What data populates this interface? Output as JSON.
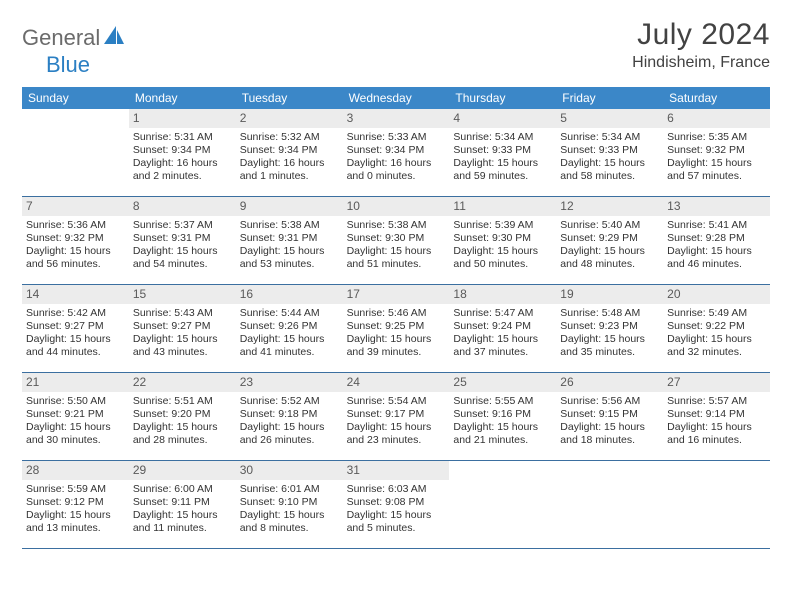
{
  "logo": {
    "text1": "General",
    "text2": "Blue"
  },
  "title": {
    "month": "July 2024",
    "location": "Hindisheim, France"
  },
  "colors": {
    "header_bg": "#3b87c8",
    "header_text": "#ffffff",
    "daynum_bg": "#ececec",
    "border": "#3b6fa0",
    "logo_blue": "#2b7fc3",
    "logo_grey": "#6b6b6b",
    "text": "#333333"
  },
  "weekdays": [
    "Sunday",
    "Monday",
    "Tuesday",
    "Wednesday",
    "Thursday",
    "Friday",
    "Saturday"
  ],
  "layout": {
    "cols": 7,
    "rows": 5,
    "first_weekday_index": 1,
    "days_in_month": 31
  },
  "days": [
    {
      "n": 1,
      "sr": "5:31 AM",
      "ss": "9:34 PM",
      "dl": "16 hours and 2 minutes."
    },
    {
      "n": 2,
      "sr": "5:32 AM",
      "ss": "9:34 PM",
      "dl": "16 hours and 1 minutes."
    },
    {
      "n": 3,
      "sr": "5:33 AM",
      "ss": "9:34 PM",
      "dl": "16 hours and 0 minutes."
    },
    {
      "n": 4,
      "sr": "5:34 AM",
      "ss": "9:33 PM",
      "dl": "15 hours and 59 minutes."
    },
    {
      "n": 5,
      "sr": "5:34 AM",
      "ss": "9:33 PM",
      "dl": "15 hours and 58 minutes."
    },
    {
      "n": 6,
      "sr": "5:35 AM",
      "ss": "9:32 PM",
      "dl": "15 hours and 57 minutes."
    },
    {
      "n": 7,
      "sr": "5:36 AM",
      "ss": "9:32 PM",
      "dl": "15 hours and 56 minutes."
    },
    {
      "n": 8,
      "sr": "5:37 AM",
      "ss": "9:31 PM",
      "dl": "15 hours and 54 minutes."
    },
    {
      "n": 9,
      "sr": "5:38 AM",
      "ss": "9:31 PM",
      "dl": "15 hours and 53 minutes."
    },
    {
      "n": 10,
      "sr": "5:38 AM",
      "ss": "9:30 PM",
      "dl": "15 hours and 51 minutes."
    },
    {
      "n": 11,
      "sr": "5:39 AM",
      "ss": "9:30 PM",
      "dl": "15 hours and 50 minutes."
    },
    {
      "n": 12,
      "sr": "5:40 AM",
      "ss": "9:29 PM",
      "dl": "15 hours and 48 minutes."
    },
    {
      "n": 13,
      "sr": "5:41 AM",
      "ss": "9:28 PM",
      "dl": "15 hours and 46 minutes."
    },
    {
      "n": 14,
      "sr": "5:42 AM",
      "ss": "9:27 PM",
      "dl": "15 hours and 44 minutes."
    },
    {
      "n": 15,
      "sr": "5:43 AM",
      "ss": "9:27 PM",
      "dl": "15 hours and 43 minutes."
    },
    {
      "n": 16,
      "sr": "5:44 AM",
      "ss": "9:26 PM",
      "dl": "15 hours and 41 minutes."
    },
    {
      "n": 17,
      "sr": "5:46 AM",
      "ss": "9:25 PM",
      "dl": "15 hours and 39 minutes."
    },
    {
      "n": 18,
      "sr": "5:47 AM",
      "ss": "9:24 PM",
      "dl": "15 hours and 37 minutes."
    },
    {
      "n": 19,
      "sr": "5:48 AM",
      "ss": "9:23 PM",
      "dl": "15 hours and 35 minutes."
    },
    {
      "n": 20,
      "sr": "5:49 AM",
      "ss": "9:22 PM",
      "dl": "15 hours and 32 minutes."
    },
    {
      "n": 21,
      "sr": "5:50 AM",
      "ss": "9:21 PM",
      "dl": "15 hours and 30 minutes."
    },
    {
      "n": 22,
      "sr": "5:51 AM",
      "ss": "9:20 PM",
      "dl": "15 hours and 28 minutes."
    },
    {
      "n": 23,
      "sr": "5:52 AM",
      "ss": "9:18 PM",
      "dl": "15 hours and 26 minutes."
    },
    {
      "n": 24,
      "sr": "5:54 AM",
      "ss": "9:17 PM",
      "dl": "15 hours and 23 minutes."
    },
    {
      "n": 25,
      "sr": "5:55 AM",
      "ss": "9:16 PM",
      "dl": "15 hours and 21 minutes."
    },
    {
      "n": 26,
      "sr": "5:56 AM",
      "ss": "9:15 PM",
      "dl": "15 hours and 18 minutes."
    },
    {
      "n": 27,
      "sr": "5:57 AM",
      "ss": "9:14 PM",
      "dl": "15 hours and 16 minutes."
    },
    {
      "n": 28,
      "sr": "5:59 AM",
      "ss": "9:12 PM",
      "dl": "15 hours and 13 minutes."
    },
    {
      "n": 29,
      "sr": "6:00 AM",
      "ss": "9:11 PM",
      "dl": "15 hours and 11 minutes."
    },
    {
      "n": 30,
      "sr": "6:01 AM",
      "ss": "9:10 PM",
      "dl": "15 hours and 8 minutes."
    },
    {
      "n": 31,
      "sr": "6:03 AM",
      "ss": "9:08 PM",
      "dl": "15 hours and 5 minutes."
    }
  ],
  "labels": {
    "sunrise": "Sunrise:",
    "sunset": "Sunset:",
    "daylight": "Daylight:"
  }
}
